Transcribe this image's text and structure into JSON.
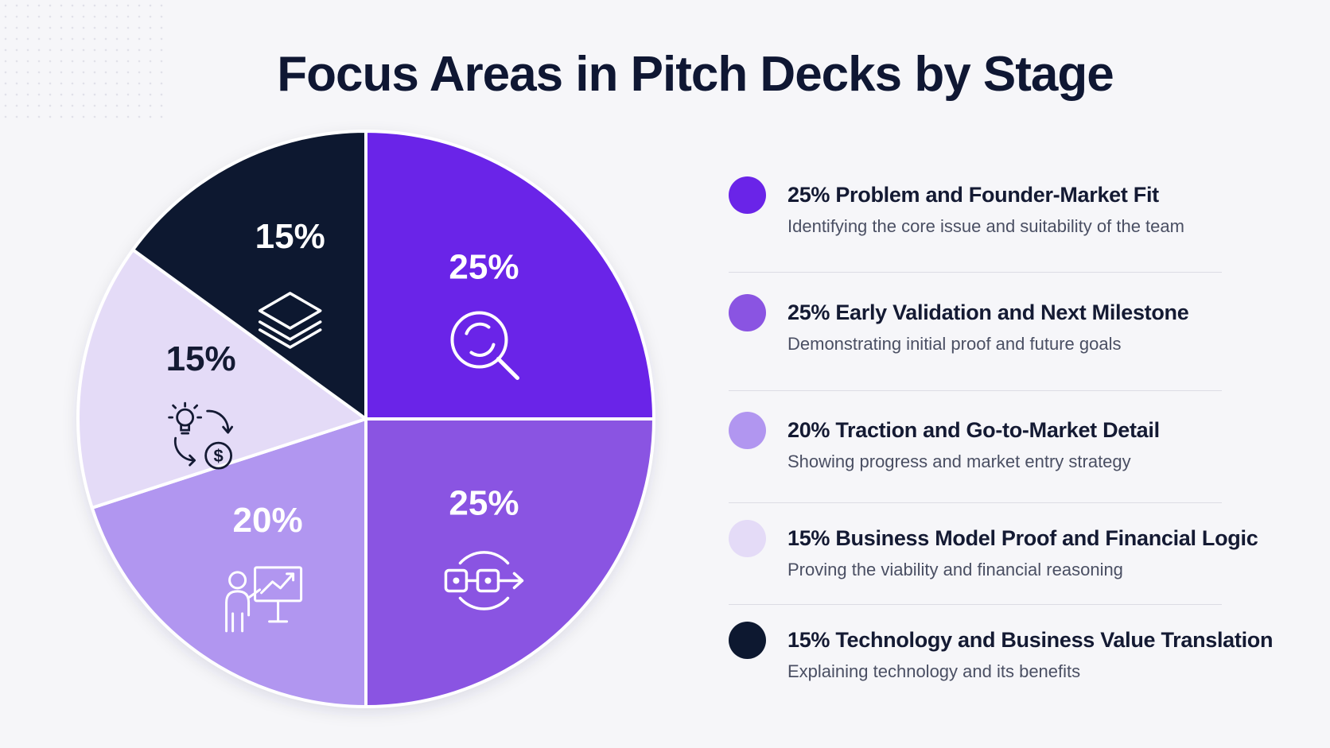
{
  "title": "Focus Areas in Pitch Decks by Stage",
  "chart_data": {
    "type": "pie",
    "title": "Focus Areas in Pitch Decks by Stage",
    "start_angle_deg": 0,
    "direction": "clockwise",
    "slices": [
      {
        "label": "Problem and Founder-Market Fit",
        "value": 25,
        "value_label": "25%",
        "color": "#6a24e8",
        "label_color": "#ffffff",
        "icon": "magnifier-refresh-icon",
        "description": "Identifying the core issue and suitability of the team"
      },
      {
        "label": "Early Validation and Next Milestone",
        "value": 25,
        "value_label": "25%",
        "color": "#8a54e2",
        "label_color": "#ffffff",
        "icon": "linked-nodes-arrow-icon",
        "description": "Demonstrating initial proof and future goals"
      },
      {
        "label": "Traction and Go-to-Market Detail",
        "value": 20,
        "value_label": "20%",
        "color": "#b196f0",
        "label_color": "#ffffff",
        "icon": "presenter-chart-icon",
        "description": "Showing progress and market entry strategy"
      },
      {
        "label": "Business Model Proof and Financial Logic",
        "value": 15,
        "value_label": "15%",
        "color": "#e4dbf7",
        "label_color": "#141a33",
        "icon": "idea-money-cycle-icon",
        "description": "Proving the viability and financial reasoning"
      },
      {
        "label": "Technology and Business Value Translation",
        "value": 15,
        "value_label": "15%",
        "color": "#0d1830",
        "label_color": "#ffffff",
        "icon": "layers-icon",
        "description": "Explaining technology and its benefits"
      }
    ]
  },
  "legend": [
    {
      "title": "25% Problem and Founder-Market Fit",
      "subtitle": "Identifying the core issue and suitability of the team",
      "color": "#6a24e8"
    },
    {
      "title": "25% Early Validation and Next Milestone",
      "subtitle": "Demonstrating initial proof and future goals",
      "color": "#8a54e2"
    },
    {
      "title": "20% Traction and Go-to-Market Detail",
      "subtitle": "Showing progress and market entry strategy",
      "color": "#b196f0"
    },
    {
      "title": "15% Business Model Proof and Financial Logic",
      "subtitle": "Proving the viability and financial reasoning",
      "color": "#e4dbf7"
    },
    {
      "title": "15% Technology and Business Value Translation",
      "subtitle": "Explaining technology and its benefits",
      "color": "#0d1830"
    }
  ]
}
